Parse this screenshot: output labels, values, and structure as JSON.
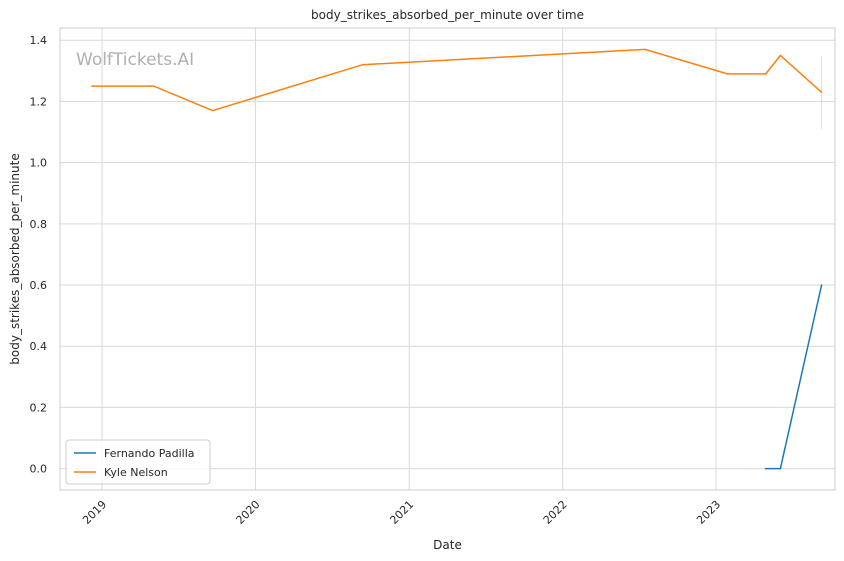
{
  "chart_data": {
    "type": "line",
    "title": "body_strikes_absorbed_per_minute over time",
    "xlabel": "Date",
    "ylabel": "body_strikes_absorbed_per_minute",
    "watermark": "WolfTickets.AI",
    "xlim": [
      "2018-09-23",
      "2023-10-11"
    ],
    "ylim": [
      -0.07,
      1.44
    ],
    "x_ticks": [
      "2019",
      "2020",
      "2021",
      "2022",
      "2023"
    ],
    "y_ticks": [
      "0.0",
      "0.2",
      "0.4",
      "0.6",
      "0.8",
      "1.0",
      "1.2",
      "1.4"
    ],
    "grid": true,
    "legend_position": "lower-left",
    "series": [
      {
        "name": "Fernando Padilla",
        "color": "#1f77b4",
        "points": [
          {
            "x": "2023-04-29",
            "y": 0.0
          },
          {
            "x": "2023-06-03",
            "y": 0.0
          },
          {
            "x": "2023-09-09",
            "y": 0.6
          }
        ]
      },
      {
        "name": "Kyle Nelson",
        "color": "#ff7f0e",
        "points": [
          {
            "x": "2018-12-08",
            "y": 1.25
          },
          {
            "x": "2019-05-04",
            "y": 1.25
          },
          {
            "x": "2019-09-21",
            "y": 1.17
          },
          {
            "x": "2020-09-12",
            "y": 1.32
          },
          {
            "x": "2022-07-16",
            "y": 1.37
          },
          {
            "x": "2023-01-28",
            "y": 1.29
          },
          {
            "x": "2023-04-29",
            "y": 1.29
          },
          {
            "x": "2023-06-03",
            "y": 1.35
          },
          {
            "x": "2023-09-09",
            "y": 1.23
          }
        ],
        "error_bar": {
          "x": "2023-09-09",
          "low": 1.11,
          "high": 1.35
        }
      }
    ]
  }
}
